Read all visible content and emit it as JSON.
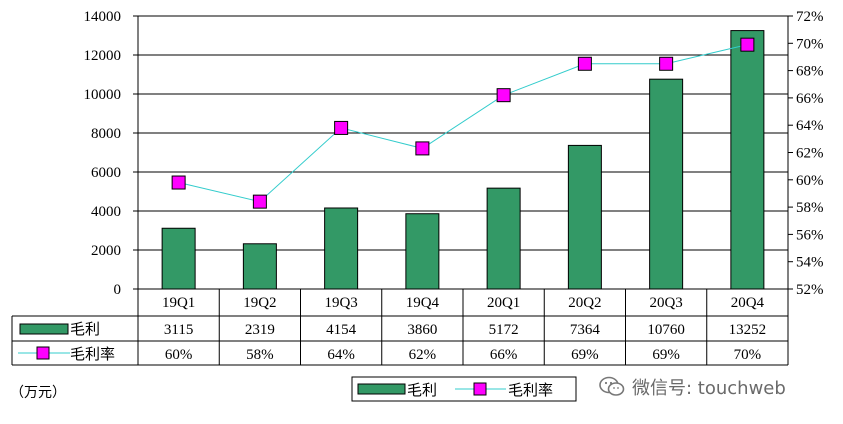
{
  "chart_data": {
    "type": "bar",
    "categories": [
      "19Q1",
      "19Q2",
      "19Q3",
      "19Q4",
      "20Q1",
      "20Q2",
      "20Q3",
      "20Q4"
    ],
    "series": [
      {
        "name": "毛利",
        "type": "bar",
        "axis": "left",
        "values": [
          3115,
          2319,
          4154,
          3860,
          5172,
          7364,
          10760,
          13252
        ],
        "color": "#339966"
      },
      {
        "name": "毛利率",
        "type": "line",
        "axis": "right",
        "values": [
          59.8,
          58.4,
          63.8,
          62.3,
          66.2,
          68.5,
          68.5,
          69.9
        ],
        "color": "#ff00ff",
        "line_color": "#33cccc"
      }
    ],
    "ylim_left": [
      0,
      14000
    ],
    "yticks_left": [
      "0",
      "2000",
      "4000",
      "6000",
      "8000",
      "10000",
      "12000",
      "14000"
    ],
    "ylim_right": [
      52,
      72
    ],
    "yticks_right": [
      "52%",
      "54%",
      "56%",
      "58%",
      "60%",
      "62%",
      "64%",
      "66%",
      "68%",
      "70%",
      "72%"
    ],
    "gridlines": true,
    "legend_position": "bottom",
    "data_table": {
      "rows": [
        {
          "label": "毛利",
          "cells": [
            "3115",
            "2319",
            "4154",
            "3860",
            "5172",
            "7364",
            "10760",
            "13252"
          ]
        },
        {
          "label": "毛利率",
          "cells": [
            "60%",
            "58%",
            "64%",
            "62%",
            "66%",
            "69%",
            "69%",
            "70%"
          ]
        }
      ]
    },
    "unit_label": "（万元）"
  },
  "watermark": {
    "text": "微信号: touchweb",
    "icon": "wechat-icon"
  }
}
